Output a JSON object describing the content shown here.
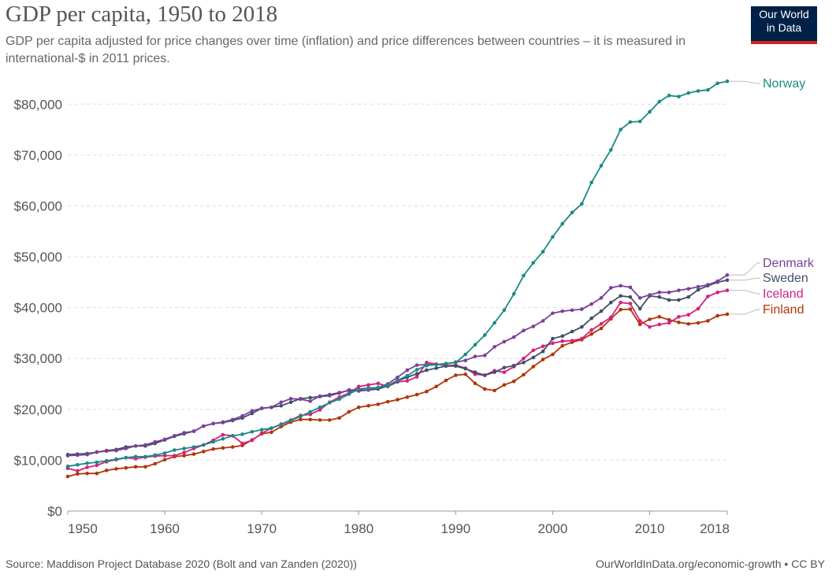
{
  "header": {
    "title": "GDP per capita, 1950 to 2018",
    "subtitle": "GDP per capita adjusted for price changes over time (inflation) and price differences between countries – it is measured in international-$ in 2011 prices."
  },
  "logo": {
    "line1": "Our World",
    "line2": "in Data"
  },
  "footer": {
    "source": "Source: Maddison Project Database 2020 (Bolt and van Zanden (2020))",
    "right": "OurWorldInData.org/economic-growth • CC BY"
  },
  "chart_data": {
    "type": "line",
    "title": "GDP per capita, 1950 to 2018",
    "x": [
      1950,
      1951,
      1952,
      1953,
      1954,
      1955,
      1956,
      1957,
      1958,
      1959,
      1960,
      1961,
      1962,
      1963,
      1964,
      1965,
      1966,
      1967,
      1968,
      1969,
      1970,
      1971,
      1972,
      1973,
      1974,
      1975,
      1976,
      1977,
      1978,
      1979,
      1980,
      1981,
      1982,
      1983,
      1984,
      1985,
      1986,
      1987,
      1988,
      1989,
      1990,
      1991,
      1992,
      1993,
      1994,
      1995,
      1996,
      1997,
      1998,
      1999,
      2000,
      2001,
      2002,
      2003,
      2004,
      2005,
      2006,
      2007,
      2008,
      2009,
      2010,
      2011,
      2012,
      2013,
      2014,
      2015,
      2016,
      2017,
      2018
    ],
    "xlim": [
      1950,
      2018
    ],
    "x_ticks": [
      "1950",
      "1960",
      "1970",
      "1980",
      "1990",
      "2000",
      "2010",
      "2018"
    ],
    "ylim": [
      0,
      85000
    ],
    "y_ticks": [
      "$0",
      "$10,000",
      "$20,000",
      "$30,000",
      "$40,000",
      "$50,000",
      "$60,000",
      "$70,000",
      "$80,000"
    ],
    "y_tick_values": [
      0,
      10000,
      20000,
      30000,
      40000,
      50000,
      60000,
      70000,
      80000
    ],
    "grid": "horizontal dashed",
    "series": [
      {
        "name": "Norway",
        "color": "#1a8a84",
        "values": [
          8800,
          9100,
          9400,
          9600,
          9900,
          10200,
          10500,
          10700,
          10700,
          11000,
          11400,
          12000,
          12300,
          12600,
          13000,
          13600,
          14200,
          14800,
          15100,
          15600,
          16000,
          16300,
          17000,
          17800,
          18600,
          19500,
          20400,
          21300,
          22000,
          23000,
          24000,
          24200,
          24300,
          24700,
          25700,
          26600,
          27800,
          28600,
          28800,
          29000,
          29200,
          30800,
          32700,
          34600,
          37000,
          39500,
          42700,
          46300,
          48800,
          51000,
          53900,
          56500,
          58700,
          60400,
          64600,
          67900,
          71000,
          75000,
          76500,
          76600,
          78500,
          80500,
          81700,
          81500,
          82200,
          82600,
          82800,
          84100,
          84500
        ]
      },
      {
        "name": "Denmark",
        "color": "#7b3f99",
        "values": [
          10900,
          11000,
          11100,
          11600,
          11800,
          11900,
          12300,
          12800,
          13000,
          13600,
          14100,
          14800,
          15400,
          15700,
          16700,
          17200,
          17500,
          18000,
          18700,
          19700,
          20200,
          20400,
          21400,
          22100,
          22000,
          21600,
          22600,
          22900,
          23300,
          23700,
          23600,
          23800,
          24300,
          25000,
          26300,
          27700,
          28700,
          28800,
          28800,
          28900,
          29300,
          29600,
          30400,
          30600,
          32300,
          33300,
          34200,
          35500,
          36300,
          37400,
          38900,
          39300,
          39500,
          39700,
          40700,
          41900,
          43900,
          44300,
          44000,
          41900,
          42500,
          43000,
          43000,
          43400,
          43700,
          44100,
          44500,
          45200,
          46400
        ]
      },
      {
        "name": "Sweden",
        "color": "#3f5069",
        "values": [
          11100,
          11200,
          11300,
          11600,
          11900,
          12100,
          12600,
          12800,
          12800,
          13300,
          14000,
          14700,
          15200,
          15700,
          16700,
          17200,
          17400,
          17800,
          18300,
          19200,
          20200,
          20400,
          20700,
          21400,
          22100,
          22300,
          22500,
          22700,
          23200,
          23800,
          23800,
          23800,
          24000,
          24600,
          25600,
          26300,
          27000,
          27700,
          28100,
          28500,
          28500,
          28000,
          27300,
          26700,
          27300,
          28200,
          28600,
          29200,
          30200,
          31400,
          33900,
          34400,
          35300,
          36200,
          37900,
          39300,
          41000,
          42300,
          42100,
          39800,
          42300,
          42100,
          41500,
          41500,
          42100,
          43500,
          44300,
          45000,
          45400
        ]
      },
      {
        "name": "Iceland",
        "color": "#d32080",
        "values": [
          8400,
          7900,
          8600,
          9000,
          9700,
          10100,
          10500,
          10300,
          10600,
          10800,
          10900,
          10900,
          11500,
          12300,
          13000,
          13900,
          15000,
          14800,
          13300,
          13900,
          15300,
          16300,
          17100,
          17900,
          18800,
          19000,
          19900,
          21400,
          22400,
          23200,
          24500,
          24800,
          25100,
          24500,
          25400,
          25600,
          26400,
          29200,
          28900,
          28600,
          28700,
          28100,
          26900,
          26700,
          27600,
          27300,
          28400,
          30000,
          31600,
          32400,
          33000,
          33400,
          33500,
          33900,
          35600,
          36800,
          38100,
          41000,
          40800,
          37400,
          36200,
          36700,
          37000,
          38200,
          38600,
          39800,
          42200,
          43000,
          43400
        ]
      },
      {
        "name": "Finland",
        "color": "#b13507",
        "values": [
          6800,
          7300,
          7400,
          7400,
          8000,
          8300,
          8500,
          8700,
          8700,
          9300,
          10100,
          10700,
          10900,
          11200,
          11700,
          12200,
          12400,
          12600,
          12900,
          14000,
          15200,
          15500,
          16600,
          17500,
          18000,
          18000,
          17900,
          17900,
          18300,
          19500,
          20400,
          20700,
          21000,
          21500,
          21900,
          22400,
          22900,
          23500,
          24500,
          25700,
          26700,
          26900,
          25100,
          24000,
          23700,
          24800,
          25500,
          26800,
          28400,
          29800,
          30800,
          32500,
          33200,
          33700,
          34800,
          35900,
          37800,
          39600,
          39700,
          36700,
          37700,
          38200,
          37600,
          37100,
          36800,
          37000,
          37400,
          38400,
          38700
        ]
      }
    ]
  }
}
